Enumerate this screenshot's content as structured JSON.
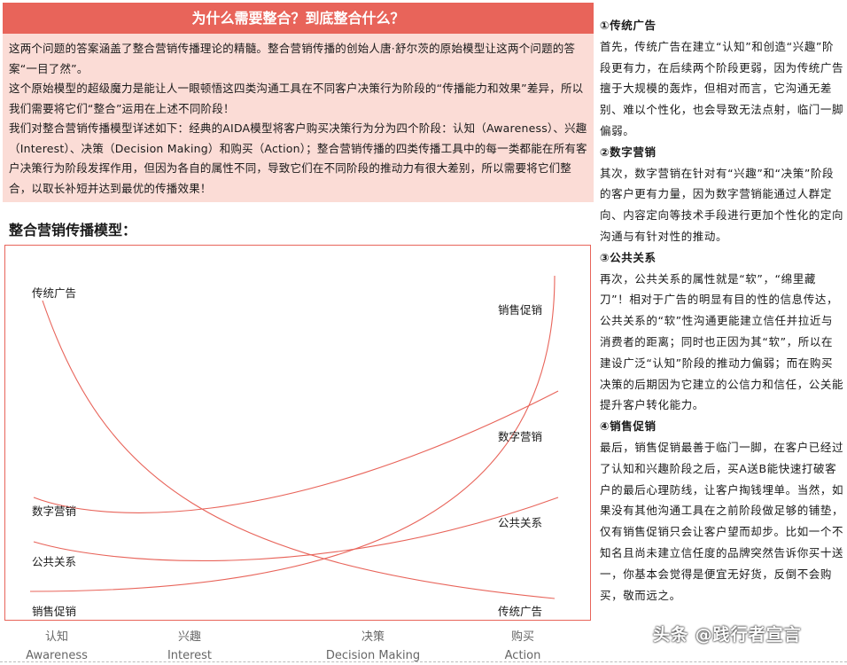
{
  "header": {
    "title": "为什么需要整合？到底整合什么？"
  },
  "intro": {
    "paragraphs": [
      "这两个问题的答案涵盖了整合营销传播理论的精髓。整合营销传播的创始人唐·舒尔茨的原始模型让这两个问题的答案“一目了然”。",
      "这个原始模型的超级魔力是能让人一眼顿悟这四类沟通工具在不同客户决策行为阶段的“传播能力和效果”差异，所以我们需要将它们“整合”运用在上述不同阶段！",
      "我们对整合营销传播模型详述如下：经典的AIDA模型将客户购买决策行为分为四个阶段：认知（Awareness）、兴趣（Interest）、决策（Decision Making）和购买（Action）；整合营销传播的四类传播工具中的每一类都能在所有客户决策行为阶段发挥作用，但因为各自的属性不同，导致它们在不同阶段的推动力有很大差别，所以需要将它们整合，以取长补短并达到最优的传播效果！"
    ]
  },
  "model_title": "整合营销传播模型：",
  "chart": {
    "curve_color": "#e8645a",
    "left_labels": [
      "传统广告",
      "数字营销",
      "公共关系",
      "销售促销"
    ],
    "right_labels": [
      "销售促销",
      "数字营销",
      "公共关系",
      "传统广告"
    ],
    "stages": [
      {
        "cn": "认知",
        "en": "Awareness"
      },
      {
        "cn": "兴趣",
        "en": "Interest"
      },
      {
        "cn": "决策",
        "en": "Decision Making"
      },
      {
        "cn": "购买",
        "en": "Action"
      }
    ]
  },
  "sections": [
    {
      "title": "①传统广告",
      "body": "首先，传统广告在建立“认知”和创造“兴趣”阶段更有力，在后续两个阶段更弱，因为传统广告擅于大规模的轰炸，但相对而言，它沟通无差别、难以个性化，也会导致无法点射，临门一脚偏弱。"
    },
    {
      "title": "②数字营销",
      "body": "其次，数字营销在针对有“兴趣”和“决策”阶段的客户更有力量，因为数字营销能通过人群定向、内容定向等技术手段进行更加个性化的定向沟通与有针对性的推动。"
    },
    {
      "title": "③公共关系",
      "body": "再次，公共关系的属性就是“软”，“绵里藏刀”！相对于广告的明显有目的性的信息传达，公共关系的“软”性沟通更能建立信任并拉近与消费者的距离；同时也正因为其“软”，所以在建设广泛“认知”阶段的推动力偏弱；而在购买决策的后期因为它建立的公信力和信任，公关能提升客户转化能力。"
    },
    {
      "title": "④销售促销",
      "body": "最后，销售促销最善于临门一脚，在客户已经过了认知和兴趣阶段之后，买A送B能快速打破客户的最后心理防线，让客户掏钱埋单。当然，如果没有其他沟通工具在之前阶段做足够的铺垫，仅有销售促销只会让客户望而却步。比如一个不知名且尚未建立信任度的品牌突然告诉你买十送一，你基本会觉得是便宜无好货，反倒不会购买，敬而远之。"
    }
  ],
  "watermark": "头条 @践行者宣言"
}
